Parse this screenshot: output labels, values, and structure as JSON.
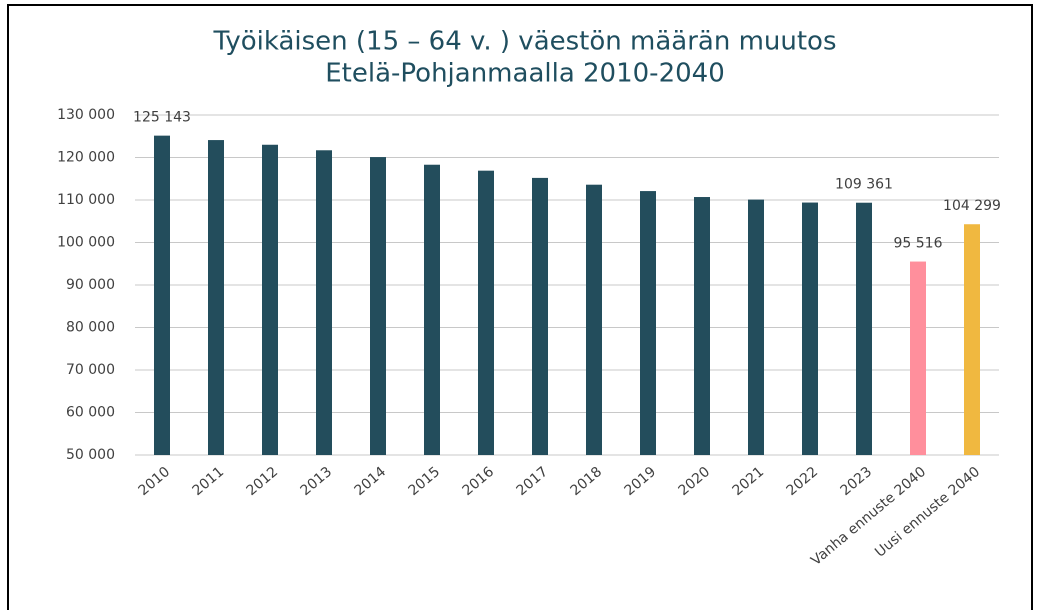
{
  "chart_data": {
    "type": "bar",
    "title": [
      "Työikäisen (15 – 64 v. ) väestön määrän muutos",
      "Etelä-Pohjanmaalla 2010-2040"
    ],
    "categories": [
      "2010",
      "2011",
      "2012",
      "2013",
      "2014",
      "2015",
      "2016",
      "2017",
      "2018",
      "2019",
      "2020",
      "2021",
      "2022",
      "2023",
      "Vanha ennuste 2040",
      "Uusi ennuste 2040"
    ],
    "values": [
      125143,
      124100,
      123000,
      121700,
      120100,
      118300,
      116900,
      115200,
      113600,
      112100,
      110700,
      110100,
      109400,
      109361,
      95516,
      104299
    ],
    "value_labels": [
      "125 143",
      null,
      null,
      null,
      null,
      null,
      null,
      null,
      null,
      null,
      null,
      null,
      null,
      "109 361",
      "95 516",
      "104 299"
    ],
    "colors": [
      "#234d5c",
      "#234d5c",
      "#234d5c",
      "#234d5c",
      "#234d5c",
      "#234d5c",
      "#234d5c",
      "#234d5c",
      "#234d5c",
      "#234d5c",
      "#234d5c",
      "#234d5c",
      "#234d5c",
      "#234d5c",
      "#ff8f9c",
      "#f0b840"
    ],
    "ylim": [
      50000,
      130000
    ],
    "yticks": [
      {
        "value": 50000,
        "label": "50 000"
      },
      {
        "value": 60000,
        "label": "60 000"
      },
      {
        "value": 70000,
        "label": "70 000"
      },
      {
        "value": 80000,
        "label": "80 000"
      },
      {
        "value": 90000,
        "label": "90 000"
      },
      {
        "value": 100000,
        "label": "100 000"
      },
      {
        "value": 110000,
        "label": "110 000"
      },
      {
        "value": 120000,
        "label": "120 000"
      },
      {
        "value": 130000,
        "label": "130 000"
      }
    ],
    "grid": true
  }
}
